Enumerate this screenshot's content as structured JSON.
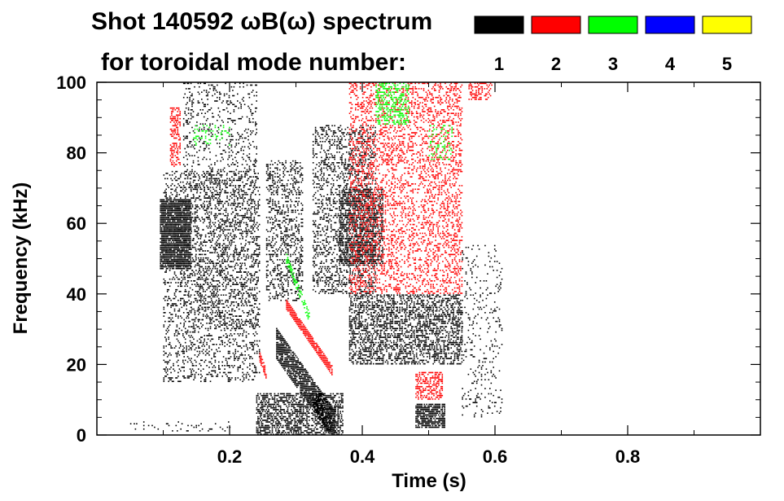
{
  "chart_data": {
    "type": "heatmap",
    "title_line1": "Shot 140592 ωB(ω) spectrum",
    "title_line2": "for toroidal mode number:",
    "xlabel": "Time (s)",
    "ylabel": "Frequency (kHz)",
    "xlim": [
      0.0,
      1.0
    ],
    "ylim": [
      0,
      100
    ],
    "x_ticks": [
      0.2,
      0.4,
      0.6,
      0.8
    ],
    "x_tick_labels": [
      "0.2",
      "0.4",
      "0.6",
      "0.8"
    ],
    "y_ticks": [
      0,
      20,
      40,
      60,
      80,
      100
    ],
    "y_tick_labels": [
      "0",
      "20",
      "40",
      "60",
      "80",
      "100"
    ],
    "legend": [
      {
        "label": "1",
        "color": "#000000"
      },
      {
        "label": "2",
        "color": "#ff0000"
      },
      {
        "label": "3",
        "color": "#00ff00"
      },
      {
        "label": "4",
        "color": "#0000ff"
      },
      {
        "label": "5",
        "color": "#ffff00"
      }
    ],
    "regions": [
      {
        "mode": 1,
        "t": [
          0.095,
          0.14
        ],
        "f": [
          47,
          67
        ],
        "density": 0.9
      },
      {
        "mode": 1,
        "t": [
          0.1,
          0.245
        ],
        "f": [
          15,
          75
        ],
        "density": 0.22
      },
      {
        "mode": 1,
        "t": [
          0.13,
          0.24
        ],
        "f": [
          30,
          100
        ],
        "density": 0.14
      },
      {
        "mode": 1,
        "t": [
          0.255,
          0.31
        ],
        "f": [
          38,
          78
        ],
        "density": 0.3
      },
      {
        "mode": 1,
        "t": [
          0.325,
          0.42
        ],
        "f": [
          40,
          88
        ],
        "density": 0.3
      },
      {
        "mode": 1,
        "t": [
          0.365,
          0.43
        ],
        "f": [
          48,
          70
        ],
        "density": 0.55
      },
      {
        "mode": 1,
        "t": [
          0.38,
          0.55
        ],
        "f": [
          20,
          40
        ],
        "density": 0.45
      },
      {
        "mode": 1,
        "t": [
          0.24,
          0.37
        ],
        "f": [
          0,
          12
        ],
        "density": 0.55
      },
      {
        "mode": 1,
        "t": [
          0.48,
          0.525
        ],
        "f": [
          2,
          9
        ],
        "density": 0.8
      },
      {
        "mode": 1,
        "t": [
          0.55,
          0.61
        ],
        "f": [
          5,
          55
        ],
        "density": 0.1
      },
      {
        "mode": 1,
        "t": [
          0.05,
          0.2
        ],
        "f": [
          1,
          4
        ],
        "density": 0.08
      },
      {
        "mode": 2,
        "t": [
          0.11,
          0.125
        ],
        "f": [
          76,
          93
        ],
        "density": 0.45
      },
      {
        "mode": 2,
        "t": [
          0.38,
          0.55
        ],
        "f": [
          40,
          100
        ],
        "density": 0.28
      },
      {
        "mode": 2,
        "t": [
          0.48,
          0.52
        ],
        "f": [
          10,
          18
        ],
        "density": 0.5
      },
      {
        "mode": 2,
        "t": [
          0.56,
          0.595
        ],
        "f": [
          95,
          100
        ],
        "density": 0.4
      },
      {
        "mode": 3,
        "t": [
          0.42,
          0.47
        ],
        "f": [
          88,
          100
        ],
        "density": 0.4
      },
      {
        "mode": 3,
        "t": [
          0.5,
          0.535
        ],
        "f": [
          78,
          88
        ],
        "density": 0.2
      },
      {
        "mode": 3,
        "t": [
          0.145,
          0.2
        ],
        "f": [
          82,
          88
        ],
        "density": 0.15
      }
    ],
    "tracks": [
      {
        "mode": 1,
        "t0": 0.27,
        "t1": 0.36,
        "f0": 26,
        "f1": 2,
        "width": 9,
        "density": 0.85
      },
      {
        "mode": 2,
        "t0": 0.285,
        "t1": 0.355,
        "f0": 37,
        "f1": 18,
        "width": 3,
        "density": 0.9
      },
      {
        "mode": 2,
        "t0": 0.245,
        "t1": 0.255,
        "f0": 22,
        "f1": 17,
        "width": 3,
        "density": 0.8
      },
      {
        "mode": 3,
        "t0": 0.285,
        "t1": 0.32,
        "f0": 50,
        "f1": 33,
        "width": 3,
        "density": 0.6
      }
    ]
  }
}
